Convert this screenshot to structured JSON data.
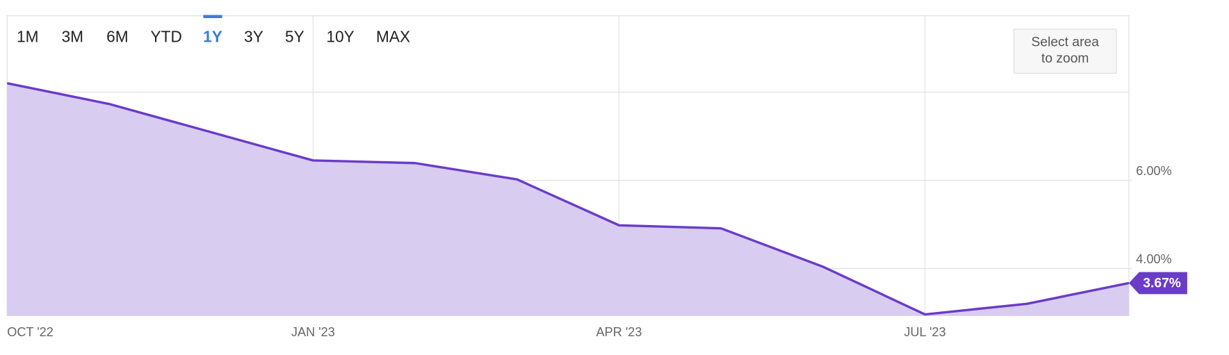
{
  "range_buttons": {
    "options": [
      "1M",
      "3M",
      "6M",
      "YTD",
      "1Y",
      "3Y",
      "5Y",
      "10Y",
      "MAX"
    ],
    "selected": 4
  },
  "zoom_button": [
    "Select area",
    "to zoom"
  ],
  "chart_data": {
    "type": "area",
    "categories": [
      "OCT '22",
      null,
      null,
      "JAN '23",
      null,
      null,
      "APR '23",
      null,
      null,
      "JUL '23",
      null,
      null
    ],
    "series": [
      {
        "color": "#6a3cc8",
        "fill": "#d8ccf0",
        "values": [
          8.2,
          7.73,
          7.09,
          6.45,
          6.39,
          6.02,
          4.98,
          4.91,
          4.04,
          2.96,
          3.2,
          3.67
        ],
        "value_labels": [
          null,
          null,
          null,
          null,
          null,
          null,
          null,
          null,
          null,
          null,
          null,
          "3.67%"
        ]
      }
    ],
    "ylim": [
      2.93,
      9.73
    ],
    "yticks": [
      {
        "value": 4,
        "label": "4.00%"
      },
      {
        "value": 6,
        "label": "6.00%"
      }
    ],
    "ygrid": [
      4,
      6,
      8
    ],
    "grid": true
  }
}
